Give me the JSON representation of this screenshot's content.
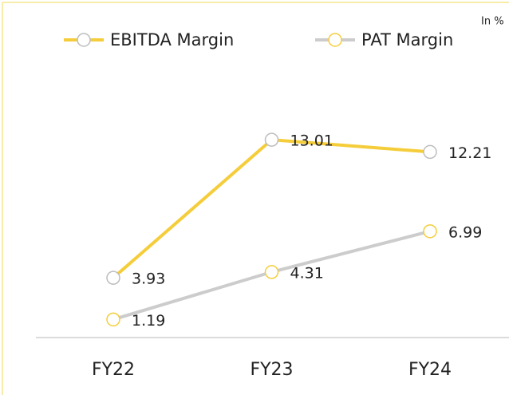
{
  "chart_data": {
    "type": "line",
    "annotation": "In %",
    "categories": [
      "FY22",
      "FY23",
      "FY24"
    ],
    "series": [
      {
        "name": "EBITDA Margin",
        "color": "#f5cd3a",
        "marker_color": "#bdbdbd",
        "values": [
          3.93,
          13.01,
          12.21
        ]
      },
      {
        "name": "PAT Margin",
        "color": "#cccccc",
        "marker_color": "#f5cd3a",
        "values": [
          1.19,
          4.31,
          6.99
        ]
      }
    ],
    "ylim": [
      0,
      20
    ]
  }
}
